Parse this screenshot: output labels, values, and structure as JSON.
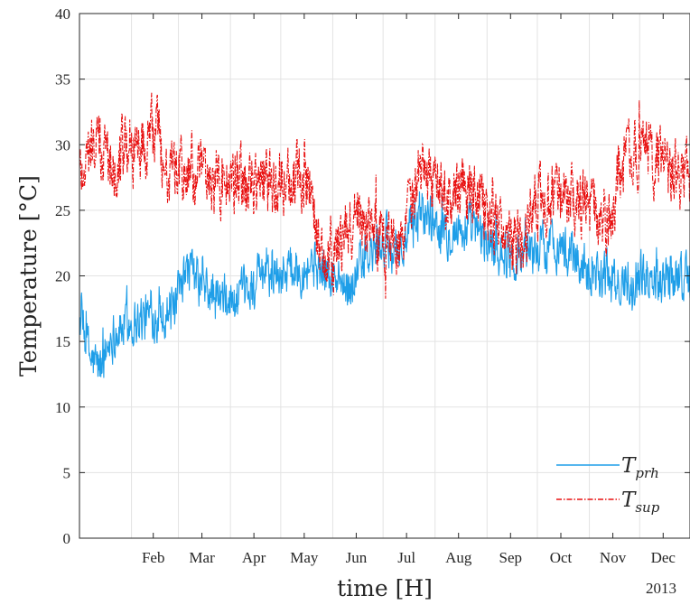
{
  "chart_data": {
    "type": "line",
    "title": "",
    "xlabel": "time [H]",
    "ylabel": "Temperature [°C]",
    "ylim": [
      0,
      40
    ],
    "yticks": [
      0,
      5,
      10,
      15,
      20,
      25,
      30,
      35,
      40
    ],
    "x_tick_labels": [
      "Feb",
      "Mar",
      "Apr",
      "May",
      "Jun",
      "Jul",
      "Aug",
      "Sep",
      "Oct",
      "Nov",
      "Dec"
    ],
    "year_label": "2013",
    "grid": true,
    "legend_position": "bottom-right",
    "x_unit": "day of year",
    "xlim": [
      1,
      365
    ],
    "series": [
      {
        "name": "T_prh",
        "label_main": "T",
        "label_sub": "prh",
        "color": "#1e9ee8",
        "line_style": "solid",
        "anchors_day": [
          1,
          8,
          14,
          20,
          32,
          45,
          58,
          66,
          75,
          85,
          96,
          110,
          125,
          140,
          149,
          160,
          170,
          182,
          193,
          205,
          220,
          235,
          250,
          262,
          272,
          285,
          300,
          315,
          322,
          330,
          345,
          365
        ],
        "anchors_value": [
          17,
          13.5,
          13,
          15.5,
          16.5,
          17,
          17.5,
          20.5,
          19,
          18,
          18,
          20,
          20.5,
          21,
          20,
          19,
          21,
          22.5,
          22,
          25,
          23.5,
          23.5,
          22,
          21.5,
          22,
          22.5,
          21,
          20,
          19,
          20,
          20,
          20
        ],
        "noise_amplitude": 1.6
      },
      {
        "name": "T_sup",
        "label_main": "T",
        "label_sub": "sup",
        "color": "#e81010",
        "line_style": "dash-dot",
        "anchors_day": [
          1,
          10,
          20,
          30,
          40,
          48,
          52,
          60,
          75,
          90,
          105,
          120,
          132,
          138,
          145,
          155,
          168,
          180,
          192,
          205,
          220,
          235,
          250,
          262,
          270,
          280,
          295,
          310,
          320,
          322,
          330,
          340,
          350,
          365
        ],
        "anchors_value": [
          28,
          30,
          29,
          30,
          30,
          31,
          28,
          28,
          27.5,
          27,
          27,
          27.5,
          27.5,
          27.5,
          21,
          22,
          25,
          22.5,
          23,
          27.5,
          26,
          26.5,
          24,
          22,
          25,
          26,
          26,
          25,
          24,
          28,
          29,
          29.5,
          28,
          27.5
        ],
        "noise_amplitude": 2.2
      }
    ]
  }
}
